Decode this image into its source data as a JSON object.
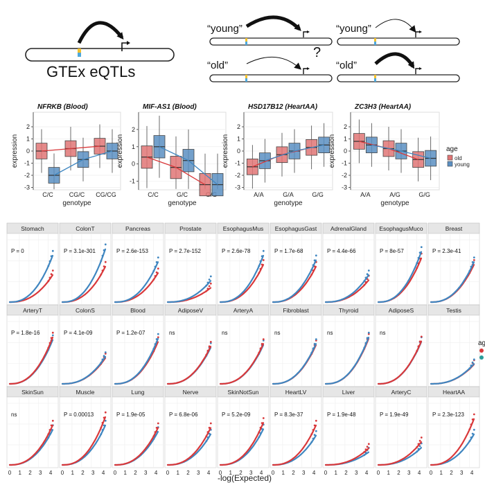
{
  "schematic": {
    "main_label": "GTEx eQTLs",
    "young_label": "“young”",
    "old_label": "“old”",
    "question_mark": "?"
  },
  "boxplots": {
    "ylabel": "expression",
    "xlabel": "genotype",
    "legend": {
      "title": "age",
      "entries": [
        {
          "name": "old",
          "color": "#e07575"
        },
        {
          "name": "young",
          "color": "#5b8fc2"
        }
      ]
    },
    "panels": [
      {
        "title": "NFRKB (Blood)",
        "categories": [
          "C/C",
          "CG/C",
          "CG/CG"
        ],
        "yticks": [
          "-3",
          "-2",
          "-1",
          "0",
          "1",
          "2"
        ],
        "ylim": [
          -3.2,
          3.2
        ],
        "old_medians": [
          0.0,
          0.2,
          0.4
        ],
        "young_medians": [
          -2.0,
          -0.7,
          0.0
        ]
      },
      {
        "title": "MIF-AS1 (Blood)",
        "categories": [
          "C/C",
          "G/C",
          "G/G"
        ],
        "yticks": [
          "-1",
          "0",
          "1",
          "2"
        ],
        "ylim": [
          -1.5,
          3.0
        ],
        "old_medians": [
          0.4,
          -0.2,
          -1.2
        ],
        "young_medians": [
          1.0,
          0.2,
          -1.2
        ]
      },
      {
        "title": "HSD17B12 (HeartAA)",
        "categories": [
          "A/A",
          "G/A",
          "G/G"
        ],
        "yticks": [
          "-3",
          "-2",
          "-1",
          "0",
          "1",
          "2"
        ],
        "ylim": [
          -3.2,
          3.2
        ],
        "old_medians": [
          -1.3,
          -0.3,
          0.3
        ],
        "young_medians": [
          -0.8,
          0.0,
          0.5
        ]
      },
      {
        "title": "ZC3H3 (HeartAA)",
        "categories": [
          "A/A",
          "A/G",
          "G/G"
        ],
        "yticks": [
          "-3",
          "-2",
          "-1",
          "0",
          "1",
          "2"
        ],
        "ylim": [
          -3.2,
          3.2
        ],
        "old_medians": [
          0.8,
          0.2,
          -0.7
        ],
        "young_medians": [
          0.5,
          0.0,
          -0.6
        ]
      }
    ]
  },
  "qq_grid": {
    "xlabel": "-log(Expected)",
    "xticks": [
      "0",
      "1",
      "2",
      "3",
      "4"
    ],
    "legend_partial": "ag",
    "colors": {
      "old": "#d9383a",
      "young": "#3f86c0"
    },
    "panels": [
      {
        "tissue": "Stomach",
        "p": "P = 0",
        "old_end": 0.42,
        "young_end": 0.72
      },
      {
        "tissue": "ColonT",
        "p": "P = 3.1e-301",
        "old_end": 0.55,
        "young_end": 0.82
      },
      {
        "tissue": "Pancreas",
        "p": "P = 2.6e-153",
        "old_end": 0.45,
        "young_end": 0.62
      },
      {
        "tissue": "Prostate",
        "p": "P = 2.7e-152",
        "old_end": 0.22,
        "young_end": 0.33
      },
      {
        "tissue": "EsophagusMus",
        "p": "P = 2.6e-78",
        "old_end": 0.58,
        "young_end": 0.72
      },
      {
        "tissue": "EsophagusGast",
        "p": "P = 1.7e-68",
        "old_end": 0.55,
        "young_end": 0.65
      },
      {
        "tissue": "AdrenalGland",
        "p": "P = 4.4e-66",
        "old_end": 0.34,
        "young_end": 0.42
      },
      {
        "tissue": "EsophagusMuco",
        "p": "P = 8e-57",
        "old_end": 0.68,
        "young_end": 0.78
      },
      {
        "tissue": "Breast",
        "p": "P = 2.3e-41",
        "old_end": 0.58,
        "young_end": 0.62
      },
      {
        "tissue": "ArteryT",
        "p": "P = 1.8e-16",
        "old_end": 0.72,
        "young_end": 0.68
      },
      {
        "tissue": "ColonS",
        "p": "P = 4.1e-09",
        "old_end": 0.4,
        "young_end": 0.42
      },
      {
        "tissue": "Blood",
        "p": "P = 1.2e-07",
        "old_end": 0.65,
        "young_end": 0.7
      },
      {
        "tissue": "AdiposeV",
        "p": "ns",
        "old_end": 0.58,
        "young_end": 0.56
      },
      {
        "tissue": "ArteryA",
        "p": "ns",
        "old_end": 0.62,
        "young_end": 0.6
      },
      {
        "tissue": "Fibroblast",
        "p": "ns",
        "old_end": 0.6,
        "young_end": 0.62
      },
      {
        "tissue": "Thyroid",
        "p": "ns",
        "old_end": 0.7,
        "young_end": 0.72
      },
      {
        "tissue": "AdiposeS",
        "p": "ns",
        "old_end": 0.66,
        "young_end": 0.65
      },
      {
        "tissue": "Testis",
        "p": "",
        "old_end": 0.3,
        "young_end": 0.31
      },
      {
        "tissue": "SkinSun",
        "p": "ns",
        "old_end": 0.62,
        "young_end": 0.55
      },
      {
        "tissue": "Muscle",
        "p": "P = 0.00013",
        "old_end": 0.75,
        "young_end": 0.62
      },
      {
        "tissue": "Lung",
        "p": "P = 1.9e-05",
        "old_end": 0.58,
        "young_end": 0.52
      },
      {
        "tissue": "Nerve",
        "p": "P = 6.8e-06",
        "old_end": 0.58,
        "young_end": 0.48
      },
      {
        "tissue": "SkinNotSun",
        "p": "P = 5.2e-09",
        "old_end": 0.66,
        "young_end": 0.56
      },
      {
        "tissue": "HeartLV",
        "p": "P = 8.3e-37",
        "old_end": 0.62,
        "young_end": 0.46
      },
      {
        "tissue": "Liver",
        "p": "P = 1.9e-48",
        "old_end": 0.26,
        "young_end": 0.2
      },
      {
        "tissue": "ArteryC",
        "p": "P = 1.9e-49",
        "old_end": 0.36,
        "young_end": 0.27
      },
      {
        "tissue": "HeartAA",
        "p": "P = 2.3e-123",
        "old_end": 0.72,
        "young_end": 0.48
      }
    ]
  }
}
